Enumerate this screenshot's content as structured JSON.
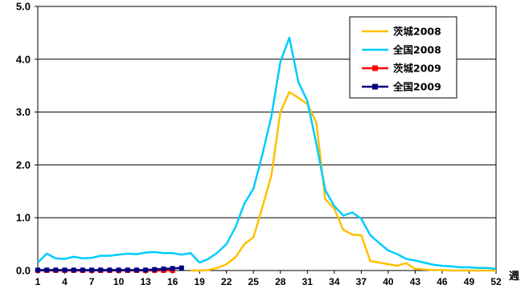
{
  "chart_data": {
    "type": "line",
    "title": "",
    "xlabel": "週",
    "ylabel": "",
    "ylim": [
      0,
      5
    ],
    "y_ticks": [
      "0.0",
      "1.0",
      "2.0",
      "3.0",
      "4.0",
      "5.0"
    ],
    "x_range": [
      1,
      52
    ],
    "x_ticks": [
      "1",
      "4",
      "7",
      "10",
      "13",
      "16",
      "19",
      "22",
      "25",
      "28",
      "31",
      "34",
      "37",
      "40",
      "43",
      "46",
      "49",
      "52"
    ],
    "grid": "horizontal",
    "legend_position": "top-right",
    "series": [
      {
        "name": "茨城2008",
        "color": "#FFC000",
        "marker": "none",
        "x": [
          18,
          19,
          20,
          21,
          22,
          23,
          24,
          25,
          26,
          27,
          28,
          29,
          30,
          31,
          32,
          33,
          34,
          35,
          36,
          37,
          38,
          39,
          40,
          41,
          42,
          43,
          44,
          45,
          46,
          47,
          48,
          49,
          50,
          51,
          52
        ],
        "values": [
          0.0,
          0.0,
          0.01,
          0.05,
          0.12,
          0.25,
          0.5,
          0.63,
          1.2,
          1.8,
          3.0,
          3.38,
          3.27,
          3.15,
          2.8,
          1.35,
          1.17,
          0.77,
          0.68,
          0.67,
          0.18,
          0.15,
          0.12,
          0.09,
          0.14,
          0.03,
          0.02,
          0.01,
          0.01,
          0.0,
          0.0,
          0.0,
          0.0,
          0.0,
          0.0
        ]
      },
      {
        "name": "全国2008",
        "color": "#00CCFF",
        "marker": "none",
        "x": [
          1,
          2,
          3,
          4,
          5,
          6,
          7,
          8,
          9,
          10,
          11,
          12,
          13,
          14,
          15,
          16,
          17,
          18,
          19,
          20,
          21,
          22,
          23,
          24,
          25,
          26,
          27,
          28,
          29,
          30,
          31,
          32,
          33,
          34,
          35,
          36,
          37,
          38,
          39,
          40,
          41,
          42,
          43,
          44,
          45,
          46,
          47,
          48,
          49,
          50,
          51,
          52
        ],
        "values": [
          0.15,
          0.32,
          0.23,
          0.22,
          0.26,
          0.23,
          0.24,
          0.28,
          0.28,
          0.3,
          0.32,
          0.31,
          0.34,
          0.35,
          0.33,
          0.33,
          0.3,
          0.33,
          0.15,
          0.22,
          0.34,
          0.5,
          0.82,
          1.27,
          1.55,
          2.2,
          2.92,
          3.95,
          4.41,
          3.57,
          3.21,
          2.4,
          1.52,
          1.22,
          1.04,
          1.1,
          0.98,
          0.67,
          0.52,
          0.38,
          0.31,
          0.22,
          0.19,
          0.15,
          0.11,
          0.09,
          0.08,
          0.06,
          0.06,
          0.05,
          0.05,
          0.03
        ]
      },
      {
        "name": "茨城2009",
        "color": "#FF0000",
        "marker": "square",
        "x": [
          1,
          2,
          3,
          4,
          5,
          6,
          7,
          8,
          9,
          10,
          11,
          12,
          13,
          14,
          15,
          16
        ],
        "values": [
          0.0,
          0.0,
          0.0,
          0.0,
          0.0,
          0.0,
          0.0,
          0.0,
          0.0,
          0.0,
          0.0,
          0.0,
          0.0,
          0.0,
          0.0,
          0.0
        ]
      },
      {
        "name": "全国2009",
        "color": "#000080",
        "marker": "square",
        "x": [
          1,
          2,
          3,
          4,
          5,
          6,
          7,
          8,
          9,
          10,
          11,
          12,
          13,
          14,
          15,
          16,
          17
        ],
        "values": [
          0.01,
          0.01,
          0.01,
          0.01,
          0.01,
          0.01,
          0.01,
          0.01,
          0.01,
          0.01,
          0.01,
          0.01,
          0.01,
          0.02,
          0.03,
          0.04,
          0.05
        ]
      }
    ]
  }
}
